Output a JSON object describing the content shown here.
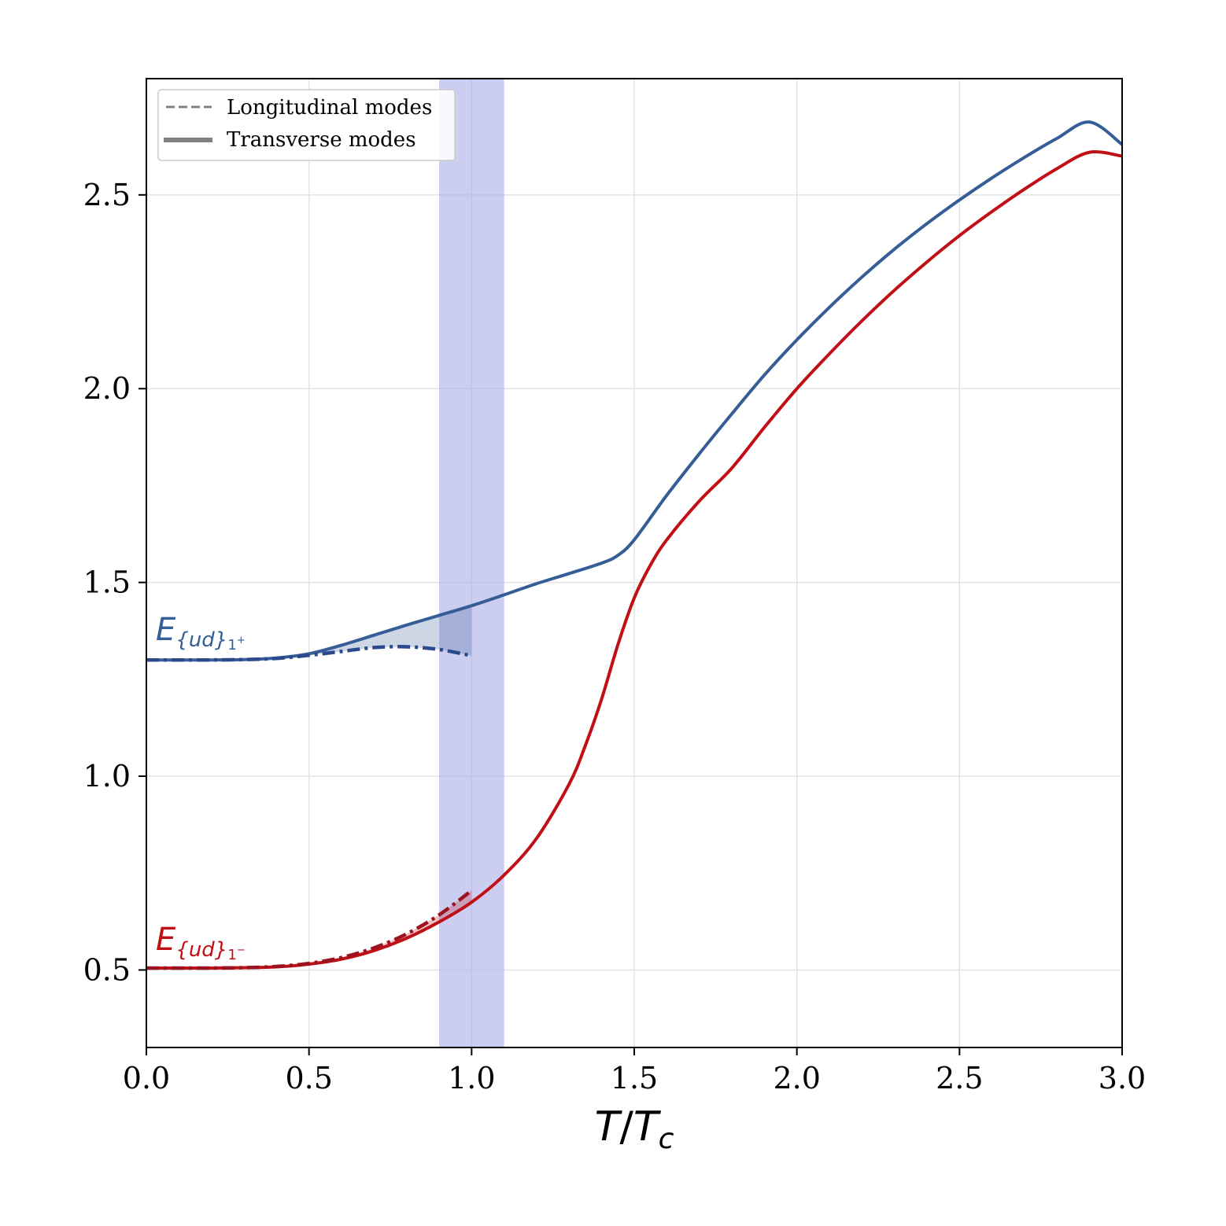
{
  "chart_data": {
    "type": "line",
    "xlabel": "T/T_c",
    "ylabel": "",
    "xlim": [
      0.0,
      3.0
    ],
    "ylim": [
      0.3,
      2.8
    ],
    "xticks": [
      0.0,
      0.5,
      1.0,
      1.5,
      2.0,
      2.5,
      3.0
    ],
    "yticks": [
      0.5,
      1.0,
      1.5,
      2.0,
      2.5
    ],
    "xtick_labels": [
      "0.0",
      "0.5",
      "1.0",
      "1.5",
      "2.0",
      "2.5",
      "3.0"
    ],
    "ytick_labels": [
      "0.5",
      "1.0",
      "1.5",
      "2.0",
      "2.5"
    ],
    "grid": true,
    "legend_position": "top-left",
    "legend": [
      {
        "label": "Longitudinal modes",
        "style": "dashed",
        "color": "#808080"
      },
      {
        "label": "Transverse modes",
        "style": "solid",
        "color": "#808080"
      }
    ],
    "shaded_band": {
      "x": [
        0.9,
        1.1
      ],
      "color": "#aaaee8"
    },
    "series": [
      {
        "label_main": "E",
        "label_sub": "{ud}",
        "label_sup_base": "1",
        "label_sup_sign": "+",
        "color": "#355d96",
        "style": "solid",
        "x": [
          0.0,
          0.1,
          0.2,
          0.3,
          0.4,
          0.5,
          0.6,
          0.7,
          0.8,
          0.9,
          1.0,
          1.1,
          1.2,
          1.3,
          1.4,
          1.45,
          1.5,
          1.6,
          1.7,
          1.8,
          1.9,
          2.0,
          2.1,
          2.2,
          2.3,
          2.4,
          2.5,
          2.6,
          2.7,
          2.8,
          2.9,
          3.0
        ],
        "y": [
          1.3,
          1.3,
          1.3,
          1.301,
          1.305,
          1.316,
          1.338,
          1.364,
          1.39,
          1.415,
          1.44,
          1.468,
          1.497,
          1.523,
          1.55,
          1.57,
          1.61,
          1.725,
          1.832,
          1.935,
          2.035,
          2.126,
          2.21,
          2.288,
          2.36,
          2.426,
          2.487,
          2.544,
          2.597,
          2.646,
          2.688,
          2.63
        ]
      },
      {
        "name": "",
        "color": "#2b4a8c",
        "style": "dashdot",
        "x": [
          0.0,
          0.1,
          0.2,
          0.3,
          0.4,
          0.5,
          0.6,
          0.7,
          0.8,
          0.9,
          1.0
        ],
        "y": [
          1.3,
          1.3,
          1.3,
          1.301,
          1.304,
          1.312,
          1.322,
          1.332,
          1.334,
          1.327,
          1.311
        ]
      },
      {
        "label_main": "E",
        "label_sub": "{ud}",
        "label_sup_base": "1",
        "label_sup_sign": "−",
        "color": "#c01015",
        "style": "solid",
        "x": [
          0.0,
          0.1,
          0.2,
          0.3,
          0.4,
          0.5,
          0.6,
          0.7,
          0.8,
          0.9,
          1.0,
          1.1,
          1.2,
          1.3,
          1.35,
          1.4,
          1.45,
          1.5,
          1.55,
          1.6,
          1.7,
          1.8,
          1.9,
          2.0,
          2.1,
          2.2,
          2.3,
          2.4,
          2.5,
          2.6,
          2.7,
          2.8,
          2.9,
          3.0
        ],
        "y": [
          0.505,
          0.505,
          0.505,
          0.506,
          0.508,
          0.515,
          0.528,
          0.55,
          0.582,
          0.624,
          0.675,
          0.745,
          0.84,
          0.98,
          1.08,
          1.2,
          1.34,
          1.46,
          1.545,
          1.61,
          1.71,
          1.795,
          1.9,
          2.0,
          2.09,
          2.175,
          2.254,
          2.327,
          2.395,
          2.457,
          2.515,
          2.568,
          2.61,
          2.6
        ]
      },
      {
        "name": "",
        "color": "#9a1320",
        "style": "dashdot",
        "x": [
          0.0,
          0.1,
          0.2,
          0.3,
          0.4,
          0.5,
          0.6,
          0.7,
          0.8,
          0.9,
          1.0
        ],
        "y": [
          0.505,
          0.505,
          0.505,
          0.506,
          0.509,
          0.517,
          0.532,
          0.557,
          0.593,
          0.642,
          0.705
        ]
      }
    ]
  }
}
